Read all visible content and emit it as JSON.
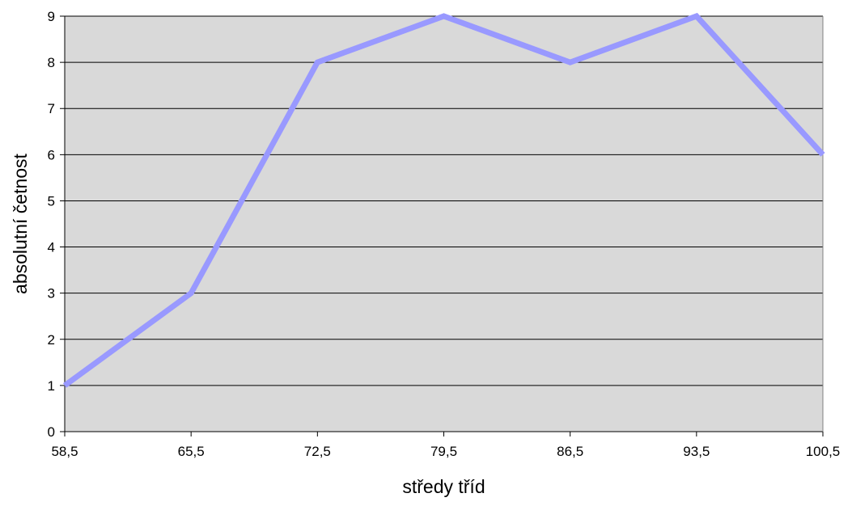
{
  "chart_data": {
    "type": "line",
    "title": "",
    "xlabel": "středy tříd",
    "ylabel": "absolutní četnost",
    "categories": [
      "58,5",
      "65,5",
      "72,5",
      "79,5",
      "86,5",
      "93,5",
      "100,5"
    ],
    "series": [
      {
        "values": [
          1,
          3,
          8,
          9,
          8,
          9,
          6
        ]
      }
    ],
    "ylim": [
      0,
      9
    ],
    "yticks": [
      "0",
      "1",
      "2",
      "3",
      "4",
      "5",
      "6",
      "7",
      "8",
      "9"
    ],
    "grid": "horizontal",
    "legend": "none",
    "colors": {
      "plot_background": "#d9d9d9",
      "line": "#9999ff",
      "grid": "#000000",
      "axis": "#000000"
    }
  }
}
